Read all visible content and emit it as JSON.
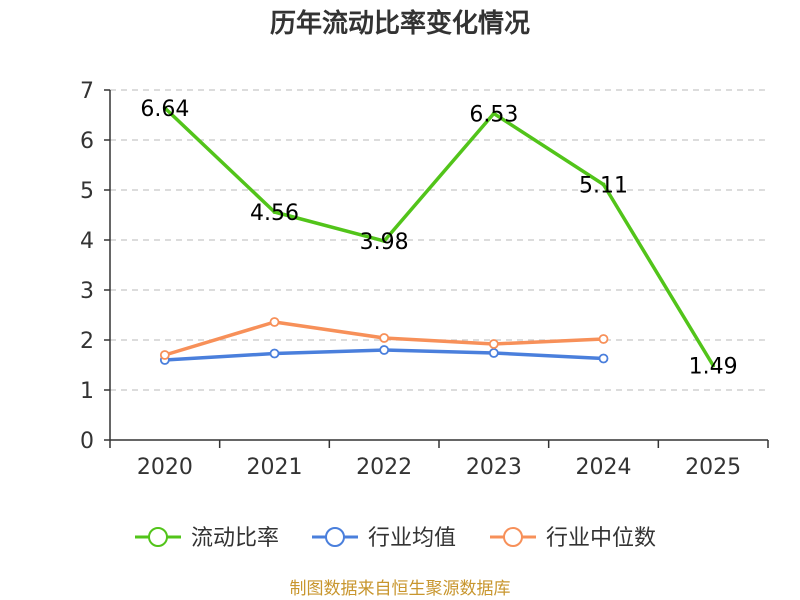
{
  "chart_data": {
    "type": "line",
    "title": "历年流动比率变化情况",
    "categories": [
      "2020",
      "2021",
      "2022",
      "2023",
      "2024",
      "2025"
    ],
    "ylim": [
      0,
      7
    ],
    "yticks": [
      0,
      1,
      2,
      3,
      4,
      5,
      6,
      7
    ],
    "grid": true,
    "legend_position": "bottom",
    "series": [
      {
        "name": "流动比率",
        "color": "#52c41a",
        "values": [
          6.64,
          4.56,
          3.98,
          6.53,
          5.11,
          1.49
        ],
        "labels": [
          "6.64",
          "4.56",
          "3.98",
          "6.53",
          "5.11",
          "1.49"
        ],
        "show_labels": true
      },
      {
        "name": "行业均值",
        "color": "#4a7fdc",
        "values": [
          1.6,
          1.73,
          1.8,
          1.74,
          1.63,
          null
        ],
        "show_labels": false
      },
      {
        "name": "行业中位数",
        "color": "#f79059",
        "values": [
          1.7,
          2.36,
          2.04,
          1.92,
          2.02,
          null
        ],
        "show_labels": false
      }
    ]
  },
  "footer": {
    "source": "制图数据来自恒生聚源数据库"
  }
}
